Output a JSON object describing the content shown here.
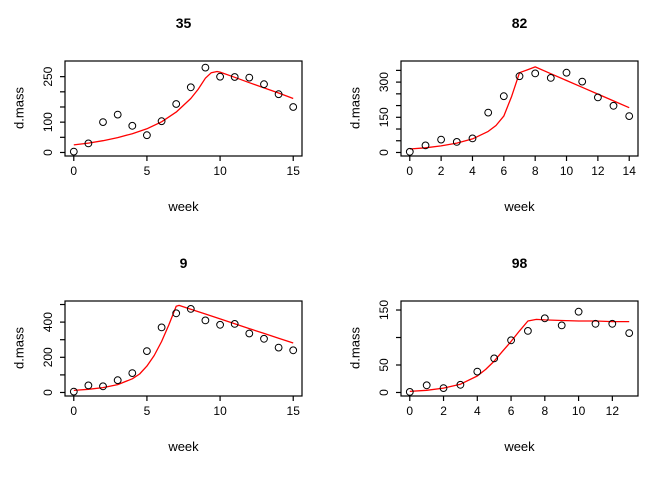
{
  "figure": {
    "background": "#ffffff",
    "line_color": "#ff0000",
    "point_color": "#000000",
    "axis_color": "#000000"
  },
  "chart_data": [
    {
      "type": "scatter",
      "title": "35",
      "xlabel": "week",
      "ylabel": "d.mass",
      "x_ticks": [
        0,
        5,
        10,
        15
      ],
      "y_ticks": [
        0,
        50,
        100,
        150,
        200,
        250
      ],
      "y_labeled_ticks": [
        0,
        100,
        250
      ],
      "xlim": [
        0,
        15
      ],
      "ylim": [
        0,
        290
      ],
      "grid": false,
      "points": [
        [
          0,
          3
        ],
        [
          1,
          30
        ],
        [
          2,
          100
        ],
        [
          3,
          125
        ],
        [
          4,
          88
        ],
        [
          5,
          57
        ],
        [
          6,
          103
        ],
        [
          7,
          160
        ],
        [
          8,
          215
        ],
        [
          9,
          280
        ],
        [
          10,
          250
        ],
        [
          11,
          249
        ],
        [
          12,
          247
        ],
        [
          13,
          225
        ],
        [
          14,
          192
        ],
        [
          15,
          150
        ]
      ],
      "fit_line": [
        [
          0,
          25
        ],
        [
          1,
          31
        ],
        [
          2,
          39
        ],
        [
          3,
          49
        ],
        [
          4,
          62
        ],
        [
          5,
          78
        ],
        [
          6,
          101
        ],
        [
          7,
          133
        ],
        [
          8,
          178
        ],
        [
          8.5,
          208
        ],
        [
          9,
          245
        ],
        [
          9.4,
          263
        ],
        [
          9.8,
          267
        ],
        [
          10,
          265
        ],
        [
          11,
          248
        ],
        [
          12,
          230
        ],
        [
          13,
          213
        ],
        [
          14,
          196
        ],
        [
          15,
          178
        ]
      ]
    },
    {
      "type": "scatter",
      "title": "82",
      "xlabel": "week",
      "ylabel": "d.mass",
      "x_ticks": [
        0,
        2,
        4,
        6,
        8,
        10,
        12,
        14
      ],
      "y_ticks": [
        0,
        50,
        100,
        150,
        200,
        250,
        300,
        350
      ],
      "y_labeled_ticks": [
        0,
        150,
        300
      ],
      "xlim": [
        0,
        14
      ],
      "ylim": [
        0,
        375
      ],
      "grid": false,
      "points": [
        [
          0,
          3
        ],
        [
          1,
          30
        ],
        [
          2,
          55
        ],
        [
          3,
          45
        ],
        [
          4,
          60
        ],
        [
          5,
          170
        ],
        [
          6,
          240
        ],
        [
          7,
          325
        ],
        [
          8,
          337
        ],
        [
          9,
          318
        ],
        [
          10,
          340
        ],
        [
          11,
          302
        ],
        [
          12,
          235
        ],
        [
          13,
          199
        ],
        [
          14,
          155
        ]
      ],
      "fit_line": [
        [
          0,
          15
        ],
        [
          1,
          20
        ],
        [
          2,
          28
        ],
        [
          3,
          40
        ],
        [
          4,
          58
        ],
        [
          5,
          90
        ],
        [
          5.5,
          115
        ],
        [
          6,
          155
        ],
        [
          6.5,
          240
        ],
        [
          7,
          340
        ],
        [
          7.5,
          352
        ],
        [
          8,
          365
        ],
        [
          9,
          336
        ],
        [
          10,
          307
        ],
        [
          11,
          278
        ],
        [
          12,
          249
        ],
        [
          13,
          220
        ],
        [
          14,
          191
        ]
      ]
    },
    {
      "type": "scatter",
      "title": "9",
      "xlabel": "week",
      "ylabel": "d.mass",
      "x_ticks": [
        0,
        5,
        10,
        15
      ],
      "y_ticks": [
        0,
        100,
        200,
        300,
        400,
        500
      ],
      "y_labeled_ticks": [
        0,
        200,
        400
      ],
      "xlim": [
        0,
        15
      ],
      "ylim": [
        0,
        500
      ],
      "grid": false,
      "points": [
        [
          0,
          5
        ],
        [
          1,
          40
        ],
        [
          2,
          35
        ],
        [
          3,
          70
        ],
        [
          4,
          110
        ],
        [
          5,
          235
        ],
        [
          6,
          370
        ],
        [
          7,
          450
        ],
        [
          8,
          475
        ],
        [
          9,
          410
        ],
        [
          10,
          385
        ],
        [
          11,
          390
        ],
        [
          12,
          335
        ],
        [
          13,
          305
        ],
        [
          14,
          255
        ],
        [
          15,
          240
        ]
      ],
      "fit_line": [
        [
          0,
          12
        ],
        [
          1,
          18
        ],
        [
          2,
          28
        ],
        [
          3,
          45
        ],
        [
          4,
          78
        ],
        [
          4.5,
          105
        ],
        [
          5,
          150
        ],
        [
          5.5,
          210
        ],
        [
          6,
          290
        ],
        [
          6.5,
          385
        ],
        [
          7,
          490
        ],
        [
          7.2,
          495
        ],
        [
          8,
          473
        ],
        [
          9,
          446
        ],
        [
          10,
          418
        ],
        [
          11,
          391
        ],
        [
          12,
          363
        ],
        [
          13,
          336
        ],
        [
          14,
          308
        ],
        [
          15,
          281
        ]
      ]
    },
    {
      "type": "scatter",
      "title": "98",
      "xlabel": "week",
      "ylabel": "d.mass",
      "x_ticks": [
        0,
        2,
        4,
        6,
        8,
        10,
        12
      ],
      "y_ticks": [
        0,
        50,
        100,
        150
      ],
      "y_labeled_ticks": [
        0,
        50,
        150
      ],
      "xlim": [
        0,
        13
      ],
      "ylim": [
        0,
        160
      ],
      "grid": false,
      "points": [
        [
          0,
          1
        ],
        [
          1,
          13
        ],
        [
          2,
          8
        ],
        [
          3,
          14
        ],
        [
          4,
          38
        ],
        [
          5,
          62
        ],
        [
          6,
          95
        ],
        [
          7,
          112
        ],
        [
          8,
          135
        ],
        [
          9,
          122
        ],
        [
          10,
          147
        ],
        [
          11,
          125
        ],
        [
          12,
          125
        ],
        [
          13,
          108
        ]
      ],
      "fit_line": [
        [
          0,
          2
        ],
        [
          1,
          4
        ],
        [
          2,
          8
        ],
        [
          3,
          15
        ],
        [
          4,
          30
        ],
        [
          4.5,
          42
        ],
        [
          5,
          57
        ],
        [
          5.5,
          75
        ],
        [
          6,
          93
        ],
        [
          6.5,
          112
        ],
        [
          7,
          130
        ],
        [
          7.5,
          133
        ],
        [
          8,
          132
        ],
        [
          9,
          131
        ],
        [
          10,
          130
        ],
        [
          11,
          130
        ],
        [
          12,
          129
        ],
        [
          13,
          129
        ]
      ]
    }
  ]
}
